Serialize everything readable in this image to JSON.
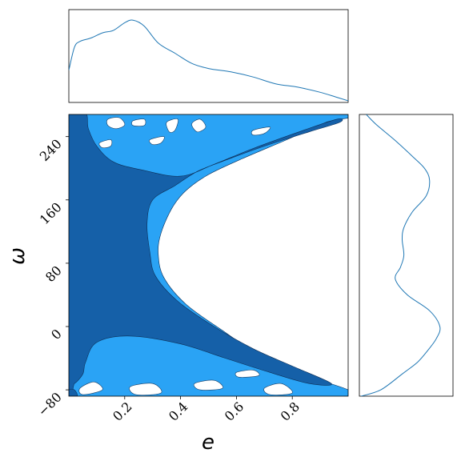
{
  "chart_data": {
    "type": "contour",
    "xlabel": "e",
    "ylabel": "ω",
    "xlim": [
      0.0,
      1.0
    ],
    "ylim": [
      -88,
      268
    ],
    "x_ticks": [
      0.2,
      0.4,
      0.6,
      0.8
    ],
    "x_tick_labels": [
      "0.2",
      "0.4",
      "0.6",
      "0.8"
    ],
    "y_ticks": [
      -80,
      0,
      80,
      160,
      240
    ],
    "y_tick_labels": [
      "−80",
      "0",
      "80",
      "160",
      "240"
    ],
    "colors": {
      "outer": "#2aa3f5",
      "inner": "#1560a8",
      "line": "#1f77b4"
    },
    "contour_levels": [
      {
        "name": "outer",
        "regions": [
          [
            [
              0.0,
              268
            ],
            [
              0.98,
              268
            ],
            [
              0.92,
              258
            ],
            [
              0.78,
              236
            ],
            [
              0.62,
              212
            ],
            [
              0.5,
              192
            ],
            [
              0.42,
              172
            ],
            [
              0.37,
              150
            ],
            [
              0.33,
              118
            ],
            [
              0.32,
              92
            ],
            [
              0.34,
              62
            ],
            [
              0.42,
              28
            ],
            [
              0.55,
              -5
            ],
            [
              0.7,
              -40
            ],
            [
              0.85,
              -62
            ],
            [
              1.0,
              -80
            ],
            [
              1.0,
              -88
            ],
            [
              0.0,
              -88
            ]
          ]
        ]
      },
      {
        "name": "inner",
        "regions": [
          [
            [
              0.0,
              270
            ],
            [
              0.06,
              270
            ],
            [
              0.07,
              250
            ],
            [
              0.1,
              228
            ],
            [
              0.16,
              208
            ],
            [
              0.26,
              198
            ],
            [
              0.4,
              190
            ],
            [
              0.52,
              205
            ],
            [
              0.66,
              225
            ],
            [
              0.84,
              248
            ],
            [
              0.96,
              262
            ],
            [
              0.97,
              258
            ],
            [
              0.86,
              246
            ],
            [
              0.7,
              228
            ],
            [
              0.56,
              210
            ],
            [
              0.46,
              196
            ],
            [
              0.38,
              178
            ],
            [
              0.3,
              160
            ],
            [
              0.28,
              130
            ],
            [
              0.29,
              94
            ],
            [
              0.31,
              64
            ],
            [
              0.39,
              32
            ],
            [
              0.52,
              0
            ],
            [
              0.66,
              -28
            ],
            [
              0.8,
              -50
            ],
            [
              0.94,
              -72
            ],
            [
              0.86,
              -72
            ],
            [
              0.72,
              -58
            ],
            [
              0.56,
              -40
            ],
            [
              0.4,
              -22
            ],
            [
              0.22,
              -12
            ],
            [
              0.1,
              -20
            ],
            [
              0.06,
              -45
            ],
            [
              0.05,
              -60
            ],
            [
              0.02,
              -72
            ],
            [
              0.0,
              -70
            ]
          ],
          [
            [
              0.0,
              -80
            ],
            [
              0.02,
              -80
            ],
            [
              0.03,
              -88
            ],
            [
              0.0,
              -88
            ]
          ]
        ]
      },
      {
        "name": "holes",
        "regions": [
          [
            [
              0.14,
              262
            ],
            [
              0.18,
              264
            ],
            [
              0.2,
              255
            ],
            [
              0.17,
              250
            ],
            [
              0.14,
              254
            ]
          ],
          [
            [
              0.23,
              260
            ],
            [
              0.27,
              262
            ],
            [
              0.27,
              254
            ],
            [
              0.23,
              254
            ]
          ],
          [
            [
              0.11,
              232
            ],
            [
              0.15,
              236
            ],
            [
              0.15,
              228
            ],
            [
              0.12,
              226
            ]
          ],
          [
            [
              0.29,
              236
            ],
            [
              0.34,
              240
            ],
            [
              0.33,
              232
            ],
            [
              0.3,
              230
            ]
          ],
          [
            [
              0.35,
              258
            ],
            [
              0.39,
              262
            ],
            [
              0.38,
              248
            ],
            [
              0.36,
              246
            ]
          ],
          [
            [
              0.44,
              256
            ],
            [
              0.47,
              262
            ],
            [
              0.49,
              252
            ],
            [
              0.46,
              246
            ]
          ],
          [
            [
              0.66,
              248
            ],
            [
              0.72,
              252
            ],
            [
              0.7,
              244
            ],
            [
              0.66,
              242
            ]
          ],
          [
            [
              0.04,
              -78
            ],
            [
              0.09,
              -70
            ],
            [
              0.12,
              -80
            ],
            [
              0.05,
              -86
            ]
          ],
          [
            [
              0.22,
              -76
            ],
            [
              0.3,
              -72
            ],
            [
              0.33,
              -84
            ],
            [
              0.24,
              -86
            ]
          ],
          [
            [
              0.45,
              -72
            ],
            [
              0.52,
              -68
            ],
            [
              0.55,
              -78
            ],
            [
              0.47,
              -80
            ]
          ],
          [
            [
              0.6,
              -58
            ],
            [
              0.66,
              -55
            ],
            [
              0.68,
              -62
            ],
            [
              0.61,
              -64
            ]
          ],
          [
            [
              0.7,
              -78
            ],
            [
              0.76,
              -72
            ],
            [
              0.8,
              -84
            ],
            [
              0.72,
              -86
            ]
          ]
        ]
      }
    ],
    "marginal_x": {
      "x": [
        0.0,
        0.02,
        0.04,
        0.08,
        0.12,
        0.16,
        0.2,
        0.23,
        0.27,
        0.32,
        0.38,
        0.44,
        0.5,
        0.58,
        0.66,
        0.74,
        0.82,
        0.9,
        0.96,
        1.0
      ],
      "density": [
        0.38,
        0.65,
        0.72,
        0.76,
        0.82,
        0.85,
        0.94,
        0.97,
        0.9,
        0.7,
        0.58,
        0.46,
        0.4,
        0.36,
        0.3,
        0.22,
        0.18,
        0.12,
        0.06,
        0.02
      ]
    },
    "marginal_y": {
      "y": [
        -88,
        -80,
        -60,
        -45,
        -30,
        -15,
        0,
        20,
        40,
        60,
        75,
        90,
        110,
        125,
        145,
        165,
        185,
        200,
        215,
        235,
        255,
        268
      ],
      "density": [
        0.02,
        0.25,
        0.5,
        0.68,
        0.8,
        0.9,
        0.94,
        0.82,
        0.56,
        0.42,
        0.48,
        0.52,
        0.5,
        0.52,
        0.62,
        0.78,
        0.82,
        0.76,
        0.62,
        0.42,
        0.2,
        0.08
      ]
    }
  }
}
